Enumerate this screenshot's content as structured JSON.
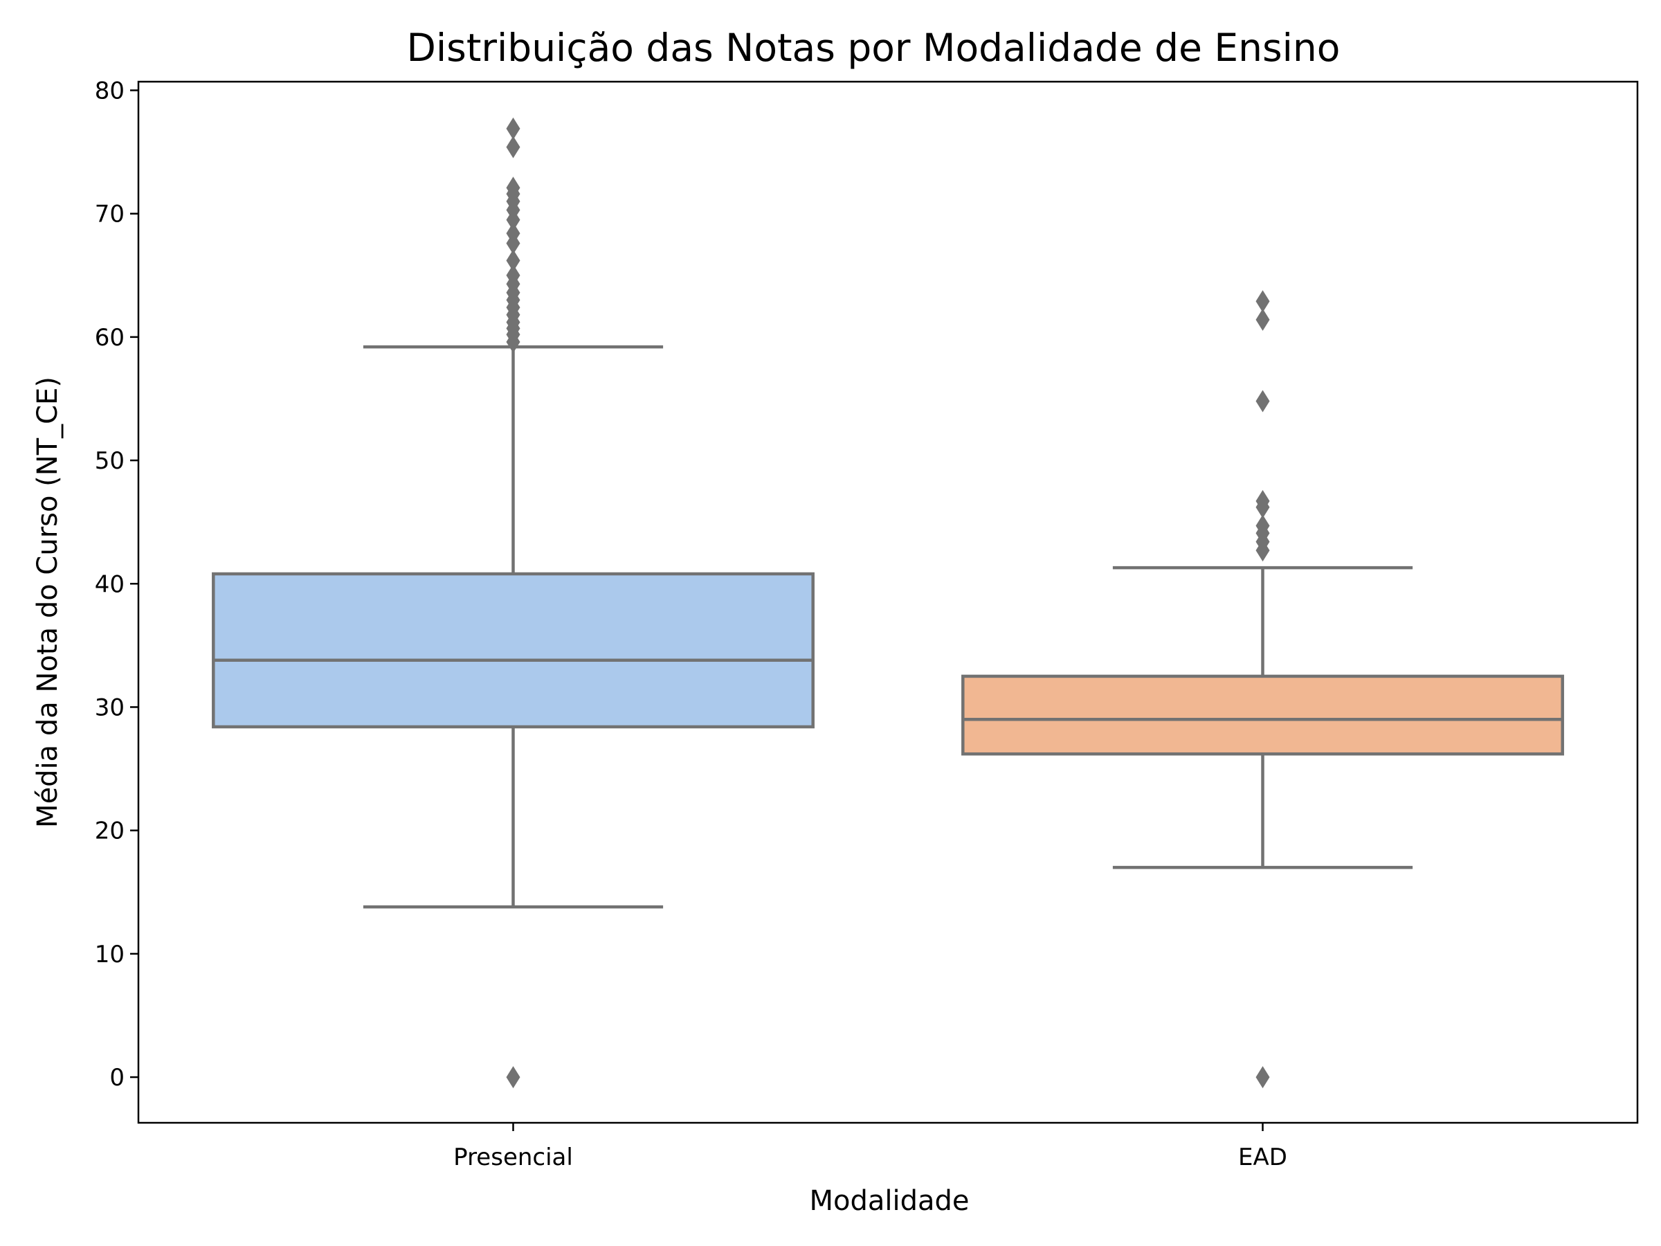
{
  "chart_data": {
    "type": "box",
    "title": "Distribuição das Notas por Modalidade de Ensino",
    "xlabel": "Modalidade",
    "ylabel": "Média da Nota do Curso (NT_CE)",
    "ylim": [
      -3.7,
      80.7
    ],
    "yticks": [
      0,
      10,
      20,
      30,
      40,
      50,
      60,
      70,
      80
    ],
    "categories": [
      "Presencial",
      "EAD"
    ],
    "grid": false,
    "legend": "none",
    "box_edge_color": "#727272",
    "series": [
      {
        "category": "Presencial",
        "color": "#abc9ec",
        "whisker_low": 13.8,
        "q1": 28.4,
        "median": 33.8,
        "q3": 40.8,
        "whisker_high": 59.2,
        "outliers": [
          0,
          59.6,
          60.2,
          60.7,
          61.2,
          61.8,
          62.4,
          63.0,
          63.6,
          64.3,
          65.0,
          66.2,
          67.6,
          68.4,
          69.5,
          70.3,
          71.0,
          71.6,
          72.1,
          75.4,
          76.9
        ]
      },
      {
        "category": "EAD",
        "color": "#f1b792",
        "whisker_low": 17.0,
        "q1": 26.2,
        "median": 29.0,
        "q3": 32.5,
        "whisker_high": 41.3,
        "outliers": [
          0,
          42.7,
          43.4,
          44.1,
          44.7,
          46.2,
          46.7,
          54.8,
          61.4,
          62.9
        ]
      }
    ]
  }
}
